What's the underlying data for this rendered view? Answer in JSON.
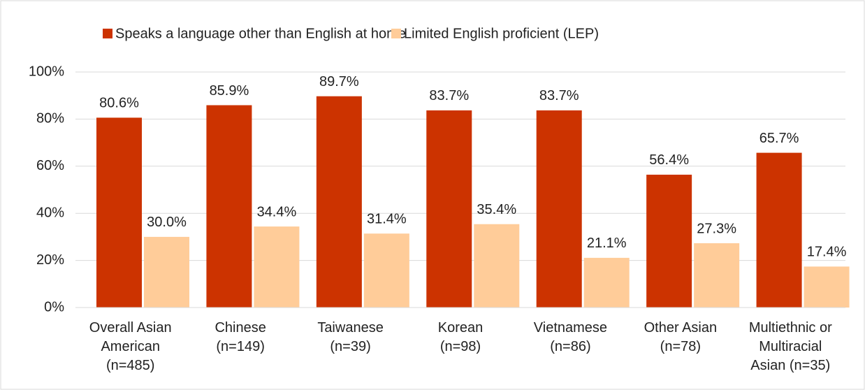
{
  "chart_data": {
    "type": "bar",
    "categories": [
      [
        "Overall Asian",
        "American",
        "(n=485)"
      ],
      [
        "Chinese",
        "(n=149)"
      ],
      [
        "Taiwanese",
        "(n=39)"
      ],
      [
        "Korean",
        "(n=98)"
      ],
      [
        "Vietnamese",
        "(n=86)"
      ],
      [
        "Other Asian",
        "(n=78)"
      ],
      [
        "Multiethnic or",
        "Multiracial",
        "Asian (n=35)"
      ]
    ],
    "series": [
      {
        "name": "Speaks a language other than English at home",
        "color": "#cc3300",
        "values": [
          80.6,
          85.9,
          89.7,
          83.7,
          83.7,
          56.4,
          65.7
        ],
        "value_labels": [
          "80.6%",
          "85.9%",
          "89.7%",
          "83.7%",
          "83.7%",
          "56.4%",
          "65.7%"
        ]
      },
      {
        "name": "Limited English proficient (LEP)",
        "color": "#ffcc99",
        "values": [
          30.0,
          34.4,
          31.4,
          35.4,
          21.1,
          27.3,
          17.4
        ],
        "value_labels": [
          "30.0%",
          "34.4%",
          "31.4%",
          "35.4%",
          "21.1%",
          "27.3%",
          "17.4%"
        ]
      }
    ],
    "ylim": [
      0,
      100
    ],
    "yticks": [
      {
        "value": 0,
        "label": "0%"
      },
      {
        "value": 20,
        "label": "20%"
      },
      {
        "value": 40,
        "label": "40%"
      },
      {
        "value": 60,
        "label": "60%"
      },
      {
        "value": 80,
        "label": "80%"
      },
      {
        "value": 100,
        "label": "100%"
      }
    ],
    "grid": true,
    "legend": "top"
  }
}
